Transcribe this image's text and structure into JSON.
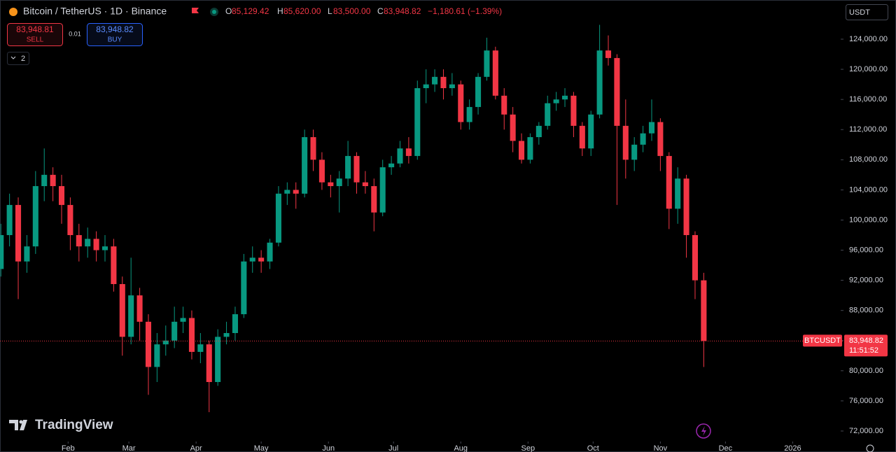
{
  "header": {
    "symbol": "Bitcoin / TetherUS · 1D · Binance",
    "o_key": "O",
    "o": "85,129.42",
    "h_key": "H",
    "h": "85,620.00",
    "l_key": "L",
    "l": "83,500.00",
    "c_key": "C",
    "c": "83,948.82",
    "change": "−1,180.61 (−1.39%)",
    "sell_price": "83,948.81",
    "sell": "SELL",
    "qty": "0.01",
    "buy_price": "83,948.82",
    "buy": "BUY",
    "indicators": "2",
    "currency": "USDT",
    "logo": "TradingView"
  },
  "chart_data": {
    "type": "candlestick",
    "up_color": "#089981",
    "down_color": "#f23645",
    "grid": false,
    "ylim": [
      70700,
      129200
    ],
    "yticks": [
      {
        "value": 72000,
        "label": "72,000.00"
      },
      {
        "value": 76000,
        "label": "76,000.00"
      },
      {
        "value": 80000,
        "label": "80,000.00"
      },
      {
        "value": 84000,
        "label": "84,000.00"
      },
      {
        "value": 88000,
        "label": "88,000.00"
      },
      {
        "value": 92000,
        "label": "92,000.00"
      },
      {
        "value": 96000,
        "label": "96,000.00"
      },
      {
        "value": 100000,
        "label": "100,000.00"
      },
      {
        "value": 104000,
        "label": "104,000.00"
      },
      {
        "value": 108000,
        "label": "108,000.00"
      },
      {
        "value": 112000,
        "label": "112,000.00"
      },
      {
        "value": 116000,
        "label": "116,000.00"
      },
      {
        "value": 120000,
        "label": "120,000.00"
      },
      {
        "value": 124000,
        "label": "124,000.00"
      }
    ],
    "xlim": [
      -0.1,
      96.7
    ],
    "xticks": [
      {
        "value": 7.75,
        "label": "Feb"
      },
      {
        "value": 14.75,
        "label": "Mar"
      },
      {
        "value": 22.5,
        "label": "Apr"
      },
      {
        "value": 30,
        "label": "May"
      },
      {
        "value": 37.75,
        "label": "Jun"
      },
      {
        "value": 45.25,
        "label": "Jul"
      },
      {
        "value": 53,
        "label": "Aug"
      },
      {
        "value": 60.75,
        "label": "Sep"
      },
      {
        "value": 68.25,
        "label": "Oct"
      },
      {
        "value": 76,
        "label": "Nov"
      },
      {
        "value": 83.5,
        "label": "Dec"
      },
      {
        "value": 91.25,
        "label": "2026"
      }
    ],
    "open": [
      93500,
      98000,
      102000,
      94500,
      96500,
      104500,
      106000,
      104500,
      102000,
      98000,
      96500,
      97500,
      96000,
      96500,
      91500,
      84500,
      90000,
      86500,
      80500,
      83500,
      84000,
      86500,
      87000,
      82500,
      83500,
      78500,
      84500,
      85000,
      87500,
      94500,
      95000,
      94500,
      97000,
      103500,
      104000,
      103500,
      111000,
      108000,
      105000,
      104500,
      105500,
      108500,
      105000,
      104500,
      101000,
      107000,
      107500,
      109500,
      108500,
      117500,
      118000,
      119000,
      117500,
      118000,
      113000,
      115000,
      119000,
      122500,
      116500,
      114000,
      110500,
      108000,
      111000,
      112500,
      115500,
      116000,
      116500,
      112500,
      109500,
      114000,
      122500,
      121500,
      112500,
      108000,
      110000,
      111500,
      113000,
      108500,
      101500,
      105500,
      98000,
      92000
    ],
    "high": [
      99500,
      103500,
      103000,
      98000,
      106500,
      109500,
      107000,
      106000,
      103000,
      99500,
      99000,
      98500,
      98000,
      97500,
      92500,
      95000,
      91000,
      87500,
      85000,
      86000,
      88500,
      88500,
      88000,
      85000,
      84000,
      85500,
      86500,
      88500,
      95500,
      96500,
      96000,
      97500,
      104500,
      105000,
      105000,
      112000,
      112000,
      109000,
      106000,
      106500,
      110500,
      109000,
      106500,
      105500,
      108000,
      108500,
      110500,
      111000,
      118500,
      120000,
      120000,
      120000,
      119500,
      118500,
      116000,
      119500,
      124200,
      123000,
      117500,
      115000,
      111500,
      111500,
      113000,
      116500,
      117000,
      117500,
      117000,
      113000,
      114500,
      125900,
      124500,
      122000,
      116000,
      111000,
      112500,
      116000,
      113500,
      109000,
      107000,
      106000,
      98500,
      93000
    ],
    "low": [
      92500,
      96500,
      89500,
      93000,
      95500,
      102500,
      102500,
      99500,
      96000,
      94500,
      95000,
      94500,
      94500,
      90500,
      82000,
      83500,
      84000,
      76800,
      78500,
      82000,
      83000,
      85000,
      81500,
      81000,
      74500,
      78000,
      83500,
      84000,
      87000,
      93000,
      93000,
      93500,
      96500,
      102000,
      101500,
      103000,
      106500,
      104000,
      103000,
      101000,
      104500,
      103500,
      103500,
      98500,
      100500,
      106000,
      107000,
      107500,
      108000,
      115500,
      117000,
      116000,
      116500,
      112000,
      112000,
      114000,
      118500,
      116000,
      112000,
      109000,
      107500,
      107500,
      110000,
      112000,
      114500,
      115000,
      111000,
      108500,
      108500,
      113500,
      120500,
      102000,
      105500,
      106500,
      109000,
      110500,
      106500,
      98800,
      99500,
      95000,
      89500,
      80500
    ],
    "close": [
      98000,
      102000,
      94500,
      96500,
      104500,
      106000,
      104500,
      102000,
      98000,
      96500,
      97500,
      96000,
      96500,
      91500,
      84500,
      90000,
      86500,
      80500,
      83500,
      84000,
      86500,
      87000,
      82500,
      83500,
      78500,
      84500,
      85000,
      87500,
      94500,
      95000,
      94500,
      97000,
      103500,
      104000,
      103500,
      111000,
      108000,
      105000,
      104500,
      105500,
      108500,
      105000,
      104500,
      101000,
      107000,
      107500,
      109500,
      108500,
      117500,
      118000,
      119000,
      117500,
      118000,
      113000,
      115000,
      119000,
      122500,
      116500,
      114000,
      110500,
      108000,
      111000,
      112500,
      115500,
      116000,
      116500,
      112500,
      109500,
      114000,
      122500,
      121500,
      112500,
      108000,
      110000,
      111500,
      113000,
      108500,
      101500,
      105500,
      98000,
      92000,
      83948.82
    ],
    "price_line": {
      "value": 83948.82,
      "label": "83,948.82",
      "symbol": "BTCUSDT",
      "countdown": "11:51:52"
    }
  }
}
